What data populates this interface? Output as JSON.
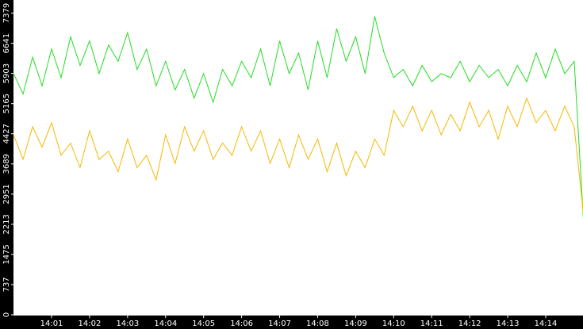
{
  "chart_data": {
    "type": "line",
    "categories": [
      null,
      null,
      null,
      null,
      "14:01",
      null,
      null,
      null,
      "14:02",
      null,
      null,
      null,
      "14:03",
      null,
      null,
      null,
      "14:04",
      null,
      null,
      null,
      "14:05",
      null,
      null,
      null,
      "14:06",
      null,
      null,
      null,
      "14:07",
      null,
      null,
      null,
      "14:08",
      null,
      null,
      null,
      "14:09",
      null,
      null,
      null,
      "14:10",
      null,
      null,
      null,
      "14:11",
      null,
      null,
      null,
      "14:12",
      null,
      null,
      null,
      "14:13",
      null,
      null,
      null,
      "14:14",
      null,
      null,
      null,
      null
    ],
    "series": [
      {
        "color": "#22dd22",
        "values": [
          5900,
          5400,
          6300,
          5600,
          6500,
          5800,
          6800,
          6100,
          6700,
          5900,
          6600,
          6200,
          6900,
          6000,
          6500,
          5600,
          6200,
          5500,
          6000,
          5300,
          5900,
          5200,
          6000,
          5600,
          6200,
          5800,
          6500,
          5600,
          6700,
          5900,
          6400,
          5500,
          6700,
          5800,
          7000,
          6200,
          6800,
          5900,
          7300,
          6400,
          5800,
          6000,
          5600,
          6100,
          5700,
          5900,
          5800,
          6200,
          5700,
          6100,
          5800,
          6000,
          5600,
          6100,
          5700,
          6400,
          5800,
          6500,
          5900,
          6200,
          2200
        ]
      },
      {
        "color": "#f5b800",
        "values": [
          4400,
          3800,
          4600,
          4100,
          4700,
          3900,
          4200,
          3600,
          4500,
          3800,
          4000,
          3500,
          4300,
          3600,
          3900,
          3300,
          4400,
          3700,
          4600,
          4000,
          4500,
          3800,
          4200,
          3900,
          4600,
          4000,
          4500,
          3700,
          4300,
          3600,
          4400,
          3800,
          4300,
          3500,
          4200,
          3400,
          4000,
          3600,
          4300,
          3900,
          5000,
          4600,
          5100,
          4500,
          5000,
          4400,
          4900,
          4500,
          5200,
          4600,
          5000,
          4300,
          5100,
          4600,
          5300,
          4700,
          5000,
          4500,
          5100,
          4600,
          2400
        ]
      }
    ],
    "ylim": [
      0,
      7700
    ],
    "yticks": [
      0,
      737,
      1475,
      2213,
      2951,
      3689,
      4427,
      5165,
      5903,
      6641,
      7379
    ]
  }
}
